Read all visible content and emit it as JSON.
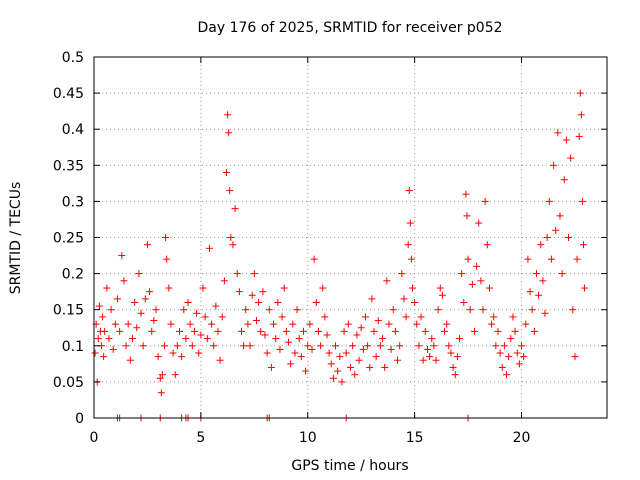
{
  "chart_data": {
    "type": "scatter",
    "title": "Day 176 of 2025, SRMTID for receiver p052",
    "xlabel": "GPS time / hours",
    "ylabel": "SRMTID / TECUs",
    "xlim": [
      0,
      24
    ],
    "ylim": [
      0,
      0.5
    ],
    "x_ticks": [
      0,
      5,
      10,
      15,
      20
    ],
    "y_ticks": [
      0,
      0.05,
      0.1,
      0.15,
      0.2,
      0.25,
      0.3,
      0.35,
      0.4,
      0.45,
      0.5
    ],
    "x_tick_labels": [
      "0",
      "5",
      "10",
      "15",
      "20"
    ],
    "y_tick_labels": [
      "0",
      "0.05",
      "0.1",
      "0.15",
      "0.2",
      "0.25",
      "0.3",
      "0.35",
      "0.4",
      "0.45",
      "0.5"
    ],
    "grid": true,
    "marker": "+",
    "color": "#ff0000",
    "series": [
      {
        "name": "SRMTID",
        "points": [
          [
            0.05,
            0.09
          ],
          [
            0.1,
            0.13
          ],
          [
            0.15,
            0.05
          ],
          [
            0.2,
            0.11
          ],
          [
            0.25,
            0.155
          ],
          [
            0.3,
            0.12
          ],
          [
            0.35,
            0.1
          ],
          [
            0.4,
            0.14
          ],
          [
            0.45,
            0.085
          ],
          [
            0.5,
            0.12
          ],
          [
            0.6,
            0.18
          ],
          [
            0.7,
            0.11
          ],
          [
            0.8,
            0.15
          ],
          [
            0.9,
            0.095
          ],
          [
            1.0,
            0.13
          ],
          [
            1.1,
            0.165
          ],
          [
            1.2,
            0.12
          ],
          [
            1.3,
            0.225
          ],
          [
            1.4,
            0.19
          ],
          [
            1.5,
            0.1
          ],
          [
            1.6,
            0.13
          ],
          [
            1.7,
            0.08
          ],
          [
            1.8,
            0.11
          ],
          [
            1.9,
            0.16
          ],
          [
            2.0,
            0.125
          ],
          [
            2.1,
            0.2
          ],
          [
            2.2,
            0.145
          ],
          [
            2.3,
            0.1
          ],
          [
            2.4,
            0.165
          ],
          [
            2.5,
            0.24
          ],
          [
            2.6,
            0.175
          ],
          [
            2.7,
            0.12
          ],
          [
            2.8,
            0.135
          ],
          [
            2.9,
            0.15
          ],
          [
            3.0,
            0.085
          ],
          [
            3.1,
            0.055
          ],
          [
            3.15,
            0.035
          ],
          [
            3.2,
            0.06
          ],
          [
            3.3,
            0.1
          ],
          [
            3.35,
            0.25
          ],
          [
            3.4,
            0.22
          ],
          [
            3.5,
            0.18
          ],
          [
            3.6,
            0.13
          ],
          [
            3.7,
            0.09
          ],
          [
            3.8,
            0.06
          ],
          [
            3.9,
            0.1
          ],
          [
            4.0,
            0.12
          ],
          [
            4.1,
            0.085
          ],
          [
            4.2,
            0.15
          ],
          [
            4.3,
            0.11
          ],
          [
            4.4,
            0.16
          ],
          [
            4.5,
            0.13
          ],
          [
            4.6,
            0.1
          ],
          [
            4.7,
            0.12
          ],
          [
            4.8,
            0.145
          ],
          [
            4.9,
            0.09
          ],
          [
            5.0,
            0.115
          ],
          [
            5.1,
            0.18
          ],
          [
            5.2,
            0.14
          ],
          [
            5.3,
            0.11
          ],
          [
            5.4,
            0.235
          ],
          [
            5.5,
            0.13
          ],
          [
            5.6,
            0.1
          ],
          [
            5.7,
            0.155
          ],
          [
            5.8,
            0.12
          ],
          [
            5.9,
            0.08
          ],
          [
            6.0,
            0.14
          ],
          [
            6.1,
            0.19
          ],
          [
            6.2,
            0.34
          ],
          [
            6.25,
            0.42
          ],
          [
            6.3,
            0.395
          ],
          [
            6.35,
            0.315
          ],
          [
            6.4,
            0.25
          ],
          [
            6.5,
            0.24
          ],
          [
            6.6,
            0.29
          ],
          [
            6.7,
            0.2
          ],
          [
            6.8,
            0.175
          ],
          [
            6.9,
            0.12
          ],
          [
            7.0,
            0.1
          ],
          [
            7.1,
            0.15
          ],
          [
            7.2,
            0.13
          ],
          [
            7.3,
            0.1
          ],
          [
            7.4,
            0.17
          ],
          [
            7.5,
            0.2
          ],
          [
            7.6,
            0.135
          ],
          [
            7.7,
            0.16
          ],
          [
            7.8,
            0.12
          ],
          [
            7.9,
            0.175
          ],
          [
            8.0,
            0.115
          ],
          [
            8.1,
            0.09
          ],
          [
            8.2,
            0.15
          ],
          [
            8.3,
            0.07
          ],
          [
            8.4,
            0.13
          ],
          [
            8.5,
            0.11
          ],
          [
            8.6,
            0.16
          ],
          [
            8.7,
            0.095
          ],
          [
            8.8,
            0.14
          ],
          [
            8.9,
            0.18
          ],
          [
            9.0,
            0.12
          ],
          [
            9.1,
            0.105
          ],
          [
            9.2,
            0.075
          ],
          [
            9.3,
            0.13
          ],
          [
            9.4,
            0.09
          ],
          [
            9.5,
            0.15
          ],
          [
            9.6,
            0.11
          ],
          [
            9.7,
            0.085
          ],
          [
            9.8,
            0.12
          ],
          [
            9.9,
            0.065
          ],
          [
            10.0,
            0.1
          ],
          [
            10.1,
            0.13
          ],
          [
            10.2,
            0.095
          ],
          [
            10.3,
            0.22
          ],
          [
            10.4,
            0.16
          ],
          [
            10.5,
            0.12
          ],
          [
            10.6,
            0.1
          ],
          [
            10.7,
            0.18
          ],
          [
            10.8,
            0.14
          ],
          [
            10.9,
            0.115
          ],
          [
            11.0,
            0.09
          ],
          [
            11.1,
            0.075
          ],
          [
            11.2,
            0.055
          ],
          [
            11.3,
            0.1
          ],
          [
            11.4,
            0.065
          ],
          [
            11.5,
            0.085
          ],
          [
            11.6,
            0.05
          ],
          [
            11.7,
            0.12
          ],
          [
            11.8,
            0.09
          ],
          [
            11.9,
            0.13
          ],
          [
            12.0,
            0.07
          ],
          [
            12.1,
            0.1
          ],
          [
            12.2,
            0.06
          ],
          [
            12.3,
            0.115
          ],
          [
            12.4,
            0.08
          ],
          [
            12.5,
            0.125
          ],
          [
            12.6,
            0.095
          ],
          [
            12.7,
            0.14
          ],
          [
            12.8,
            0.1
          ],
          [
            12.9,
            0.07
          ],
          [
            13.0,
            0.165
          ],
          [
            13.1,
            0.12
          ],
          [
            13.2,
            0.085
          ],
          [
            13.3,
            0.135
          ],
          [
            13.4,
            0.1
          ],
          [
            13.5,
            0.11
          ],
          [
            13.6,
            0.07
          ],
          [
            13.7,
            0.19
          ],
          [
            13.8,
            0.13
          ],
          [
            13.9,
            0.095
          ],
          [
            14.0,
            0.15
          ],
          [
            14.1,
            0.12
          ],
          [
            14.2,
            0.08
          ],
          [
            14.3,
            0.1
          ],
          [
            14.4,
            0.2
          ],
          [
            14.5,
            0.165
          ],
          [
            14.6,
            0.14
          ],
          [
            14.7,
            0.24
          ],
          [
            14.75,
            0.315
          ],
          [
            14.8,
            0.27
          ],
          [
            14.85,
            0.22
          ],
          [
            14.9,
            0.18
          ],
          [
            15.0,
            0.16
          ],
          [
            15.1,
            0.13
          ],
          [
            15.2,
            0.1
          ],
          [
            15.3,
            0.14
          ],
          [
            15.4,
            0.08
          ],
          [
            15.5,
            0.12
          ],
          [
            15.6,
            0.095
          ],
          [
            15.7,
            0.085
          ],
          [
            15.8,
            0.11
          ],
          [
            15.9,
            0.1
          ],
          [
            16.0,
            0.08
          ],
          [
            16.1,
            0.15
          ],
          [
            16.2,
            0.18
          ],
          [
            16.3,
            0.17
          ],
          [
            16.4,
            0.12
          ],
          [
            16.5,
            0.13
          ],
          [
            16.6,
            0.1
          ],
          [
            16.7,
            0.09
          ],
          [
            16.8,
            0.07
          ],
          [
            16.9,
            0.06
          ],
          [
            17.0,
            0.085
          ],
          [
            17.1,
            0.11
          ],
          [
            17.2,
            0.2
          ],
          [
            17.3,
            0.16
          ],
          [
            17.4,
            0.31
          ],
          [
            17.45,
            0.28
          ],
          [
            17.5,
            0.22
          ],
          [
            17.6,
            0.15
          ],
          [
            17.7,
            0.185
          ],
          [
            17.8,
            0.12
          ],
          [
            17.9,
            0.21
          ],
          [
            18.0,
            0.27
          ],
          [
            18.1,
            0.19
          ],
          [
            18.2,
            0.15
          ],
          [
            18.3,
            0.3
          ],
          [
            18.4,
            0.24
          ],
          [
            18.5,
            0.18
          ],
          [
            18.6,
            0.13
          ],
          [
            18.7,
            0.14
          ],
          [
            18.8,
            0.1
          ],
          [
            18.9,
            0.12
          ],
          [
            19.0,
            0.09
          ],
          [
            19.1,
            0.07
          ],
          [
            19.2,
            0.1
          ],
          [
            19.3,
            0.06
          ],
          [
            19.4,
            0.085
          ],
          [
            19.5,
            0.11
          ],
          [
            19.6,
            0.14
          ],
          [
            19.7,
            0.12
          ],
          [
            19.8,
            0.09
          ],
          [
            19.9,
            0.075
          ],
          [
            20.0,
            0.1
          ],
          [
            20.1,
            0.085
          ],
          [
            20.2,
            0.13
          ],
          [
            20.3,
            0.22
          ],
          [
            20.4,
            0.175
          ],
          [
            20.5,
            0.15
          ],
          [
            20.6,
            0.12
          ],
          [
            20.7,
            0.2
          ],
          [
            20.8,
            0.17
          ],
          [
            20.9,
            0.24
          ],
          [
            21.0,
            0.19
          ],
          [
            21.1,
            0.145
          ],
          [
            21.2,
            0.25
          ],
          [
            21.3,
            0.3
          ],
          [
            21.4,
            0.22
          ],
          [
            21.5,
            0.35
          ],
          [
            21.6,
            0.26
          ],
          [
            21.7,
            0.395
          ],
          [
            21.8,
            0.28
          ],
          [
            21.9,
            0.2
          ],
          [
            22.0,
            0.33
          ],
          [
            22.1,
            0.385
          ],
          [
            22.2,
            0.25
          ],
          [
            22.3,
            0.36
          ],
          [
            22.4,
            0.15
          ],
          [
            22.5,
            0.085
          ],
          [
            22.6,
            0.22
          ],
          [
            22.7,
            0.39
          ],
          [
            22.75,
            0.45
          ],
          [
            22.8,
            0.42
          ],
          [
            22.85,
            0.3
          ],
          [
            22.9,
            0.24
          ],
          [
            22.95,
            0.18
          ],
          [
            1.1,
            0.0
          ],
          [
            1.2,
            0.0
          ],
          [
            2.2,
            0.0
          ],
          [
            3.1,
            0.0
          ],
          [
            4.1,
            0.0
          ],
          [
            4.3,
            0.0
          ],
          [
            4.4,
            0.0
          ],
          [
            5.0,
            0.0
          ],
          [
            8.1,
            0.0
          ],
          [
            8.2,
            0.0
          ],
          [
            11.8,
            0.0
          ],
          [
            17.5,
            0.0
          ]
        ]
      }
    ]
  }
}
